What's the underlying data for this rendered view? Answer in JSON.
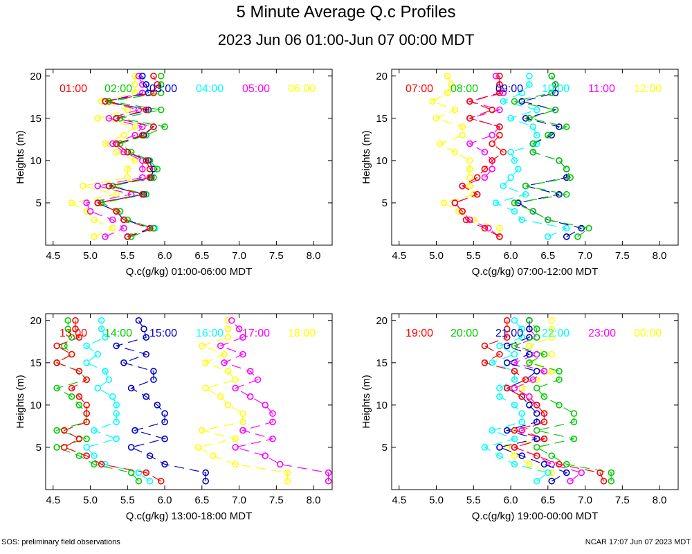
{
  "title": "5 Minute Average Q.c Profiles",
  "subtitle": "2023 Jun 06 01:00-Jun 07 00:00 MDT",
  "footer_left": "SOS: preliminary field observations",
  "footer_right": "NCAR 17:07 Jun 07 2023 MDT",
  "colors": [
    "#ff0000",
    "#00cc00",
    "#0000cc",
    "#00ffff",
    "#ff00ff",
    "#ffff00"
  ],
  "chart_data": [
    {
      "type": "line",
      "xlabel": "Q.c(g/kg) 01:00-06:00 MDT",
      "ylabel": "Heights (m)",
      "xlim": [
        4.4,
        8.25
      ],
      "ylim": [
        0,
        20.8
      ],
      "xticks": [
        "4.5",
        "5.0",
        "5.5",
        "6.0",
        "6.5",
        "7.0",
        "7.5",
        "8.0"
      ],
      "yticks": [
        "5",
        "10",
        "15",
        "20"
      ],
      "heights": [
        1,
        2,
        3,
        4,
        5,
        6,
        7,
        8,
        9,
        10,
        11,
        12,
        13,
        14,
        15,
        16,
        17,
        18,
        19,
        20
      ],
      "series": [
        {
          "name": "01:00",
          "color": "#ff0000",
          "values": [
            5.5,
            5.8,
            5.45,
            5.35,
            5.1,
            5.7,
            5.25,
            5.8,
            5.8,
            5.75,
            5.5,
            5.35,
            5.7,
            5.85,
            5.35,
            5.75,
            5.2,
            5.85,
            5.9,
            5.85
          ]
        },
        {
          "name": "02:00",
          "color": "#00cc00",
          "values": [
            5.55,
            5.85,
            5.5,
            5.4,
            5.15,
            5.75,
            5.3,
            5.85,
            5.9,
            5.8,
            5.55,
            5.4,
            5.75,
            6.0,
            5.4,
            5.95,
            5.25,
            5.95,
            5.95,
            5.95
          ]
        },
        {
          "name": "03:00",
          "color": "#0000cc",
          "values": [
            5.5,
            5.85,
            5.45,
            5.35,
            5.1,
            5.72,
            5.25,
            5.82,
            5.85,
            5.78,
            5.5,
            5.35,
            5.72,
            5.85,
            5.35,
            5.78,
            5.2,
            5.78,
            5.75,
            5.7
          ]
        },
        {
          "name": "04:00",
          "color": "#00ffff",
          "values": [
            5.5,
            5.87,
            5.45,
            5.35,
            5.1,
            5.72,
            5.25,
            5.8,
            5.85,
            5.78,
            5.5,
            5.35,
            5.72,
            5.85,
            5.35,
            5.78,
            5.2,
            5.78,
            5.75,
            5.7
          ]
        },
        {
          "name": "05:00",
          "color": "#ff00ff",
          "values": [
            5.2,
            5.45,
            5.3,
            5.0,
            4.95,
            5.55,
            5.1,
            5.7,
            5.7,
            5.7,
            5.45,
            5.3,
            5.6,
            5.7,
            5.25,
            5.65,
            5.2,
            5.7,
            5.7,
            5.65
          ]
        },
        {
          "name": "06:00",
          "color": "#ffff00",
          "values": [
            5.05,
            5.3,
            5.05,
            4.95,
            4.75,
            5.35,
            4.9,
            5.5,
            5.5,
            5.6,
            5.35,
            5.2,
            5.45,
            5.6,
            5.1,
            5.5,
            5.15,
            5.6,
            5.6,
            5.6
          ]
        }
      ]
    },
    {
      "type": "line",
      "xlabel": "Q.c(g/kg) 07:00-12:00 MDT",
      "ylabel": "Heights (m)",
      "xlim": [
        4.4,
        8.25
      ],
      "ylim": [
        0,
        20.8
      ],
      "xticks": [
        "4.5",
        "5.0",
        "5.5",
        "6.0",
        "6.5",
        "7.0",
        "7.5",
        "8.0"
      ],
      "yticks": [
        "5",
        "10",
        "15",
        "20"
      ],
      "heights": [
        1,
        2,
        3,
        4,
        5,
        6,
        7,
        8,
        9,
        10,
        11,
        12,
        13,
        14,
        15,
        16,
        17,
        18,
        19,
        20
      ],
      "series": [
        {
          "name": "07:00",
          "color": "#ff0000",
          "values": [
            5.85,
            5.65,
            5.4,
            5.35,
            5.25,
            5.55,
            5.35,
            5.55,
            5.65,
            5.75,
            5.9,
            5.75,
            5.85,
            5.85,
            5.45,
            5.75,
            5.45,
            5.85,
            5.85,
            5.85
          ]
        },
        {
          "name": "08:00",
          "color": "#00cc00",
          "values": [
            6.9,
            7.05,
            6.5,
            6.3,
            6.05,
            6.75,
            6.2,
            6.8,
            6.75,
            6.65,
            6.3,
            6.3,
            6.5,
            6.75,
            6.25,
            6.6,
            6.05,
            6.55,
            6.6,
            6.55
          ]
        },
        {
          "name": "09:00",
          "color": "#0000cc",
          "values": [
            6.75,
            6.95,
            6.5,
            6.3,
            6.1,
            6.65,
            6.2,
            6.75,
            6.75,
            6.65,
            6.3,
            6.3,
            6.55,
            6.65,
            6.2,
            6.6,
            6.15,
            6.6,
            6.6,
            6.55
          ]
        },
        {
          "name": "10:00",
          "color": "#00ffff",
          "values": [
            6.5,
            6.75,
            6.15,
            6.05,
            5.8,
            6.2,
            5.9,
            6.0,
            6.1,
            6.05,
            6.0,
            6.35,
            6.35,
            6.3,
            6.0,
            6.35,
            5.9,
            6.15,
            6.25,
            6.25
          ]
        },
        {
          "name": "11:00",
          "color": "#ff00ff",
          "values": [
            5.85,
            5.7,
            5.45,
            5.35,
            5.25,
            5.55,
            5.35,
            5.65,
            5.75,
            5.75,
            5.65,
            5.45,
            5.75,
            5.85,
            5.45,
            5.85,
            5.45,
            5.9,
            5.85,
            5.8
          ]
        },
        {
          "name": "12:00",
          "color": "#ffff00",
          "values": [
            5.85,
            5.85,
            5.5,
            5.3,
            5.1,
            5.5,
            5.45,
            5.45,
            5.45,
            5.45,
            5.25,
            5.05,
            5.35,
            5.35,
            5.0,
            5.25,
            4.95,
            5.15,
            5.2,
            5.15
          ]
        }
      ]
    },
    {
      "type": "line",
      "xlabel": "Q.c(g/kg) 13:00-18:00 MDT",
      "ylabel": "Heights (m)",
      "xlim": [
        4.4,
        8.25
      ],
      "ylim": [
        0,
        20.8
      ],
      "xticks": [
        "4.5",
        "5.0",
        "5.5",
        "6.0",
        "6.5",
        "7.0",
        "7.5",
        "8.0"
      ],
      "yticks": [
        "5",
        "10",
        "15",
        "20"
      ],
      "heights": [
        1,
        2,
        3,
        4,
        5,
        6,
        7,
        8,
        9,
        10,
        11,
        12,
        13,
        14,
        15,
        16,
        17,
        18,
        19,
        20
      ],
      "series": [
        {
          "name": "13:00",
          "color": "#ff0000",
          "values": [
            5.95,
            5.75,
            5.15,
            4.95,
            4.65,
            4.85,
            4.65,
            4.95,
            4.95,
            4.95,
            4.85,
            4.75,
            4.95,
            4.85,
            4.55,
            4.75,
            4.55,
            4.85,
            4.8,
            4.8
          ]
        },
        {
          "name": "14:00",
          "color": "#00cc00",
          "values": [
            5.65,
            5.55,
            5.05,
            4.85,
            4.55,
            4.95,
            4.55,
            4.95,
            4.95,
            4.85,
            4.75,
            4.55,
            4.95,
            4.85,
            4.55,
            4.75,
            4.65,
            4.75,
            4.7,
            4.7
          ]
        },
        {
          "name": "15:00",
          "color": "#0000cc",
          "values": [
            6.55,
            6.55,
            6.0,
            5.8,
            5.55,
            6.0,
            5.6,
            6.0,
            6.0,
            5.9,
            5.75,
            5.55,
            5.85,
            5.85,
            5.45,
            5.75,
            5.35,
            5.75,
            5.72,
            5.65
          ]
        },
        {
          "name": "16:00",
          "color": "#00ffff",
          "values": [
            5.8,
            5.65,
            5.2,
            5.05,
            4.95,
            5.35,
            5.05,
            5.35,
            5.35,
            5.35,
            5.3,
            5.1,
            5.25,
            5.2,
            4.95,
            5.1,
            4.95,
            5.2,
            5.15,
            5.15
          ]
        },
        {
          "name": "17:00",
          "color": "#ff00ff",
          "values": [
            8.2,
            8.2,
            7.55,
            7.35,
            6.95,
            7.45,
            7.05,
            7.45,
            7.45,
            7.35,
            7.15,
            6.95,
            7.25,
            7.15,
            6.8,
            7.05,
            6.75,
            7.05,
            7.0,
            6.9
          ]
        },
        {
          "name": "18:00",
          "color": "#ffff00",
          "values": [
            7.65,
            7.65,
            6.95,
            6.65,
            6.45,
            6.95,
            6.5,
            7.05,
            7.05,
            6.85,
            6.75,
            6.55,
            6.95,
            6.85,
            6.55,
            6.8,
            6.5,
            6.85,
            6.85,
            6.85
          ]
        }
      ]
    },
    {
      "type": "line",
      "xlabel": "Q.c(g/kg) 19:00-00:00 MDT",
      "ylabel": "Heights (m)",
      "xlim": [
        4.4,
        8.25
      ],
      "ylim": [
        0,
        20.8
      ],
      "xticks": [
        "4.5",
        "5.0",
        "5.5",
        "6.0",
        "6.5",
        "7.0",
        "7.5",
        "8.0"
      ],
      "yticks": [
        "5",
        "10",
        "15",
        "20"
      ],
      "heights": [
        1,
        2,
        3,
        4,
        5,
        6,
        7,
        8,
        9,
        10,
        11,
        12,
        13,
        14,
        15,
        16,
        17,
        18,
        19,
        20
      ],
      "series": [
        {
          "name": "19:00",
          "color": "#ff0000",
          "values": [
            7.25,
            7.2,
            6.65,
            6.35,
            6.05,
            6.45,
            6.05,
            6.45,
            6.45,
            6.35,
            6.15,
            5.95,
            6.2,
            6.05,
            5.65,
            5.85,
            5.65,
            5.95,
            5.95,
            5.95
          ]
        },
        {
          "name": "20:00",
          "color": "#00cc00",
          "values": [
            7.35,
            7.35,
            6.75,
            6.55,
            6.35,
            6.85,
            6.35,
            6.85,
            6.85,
            6.65,
            6.45,
            6.35,
            6.65,
            6.65,
            6.25,
            6.45,
            6.05,
            6.35,
            6.35,
            6.25
          ]
        },
        {
          "name": "21:00",
          "color": "#0000cc",
          "values": [
            6.55,
            6.75,
            6.45,
            6.15,
            5.85,
            6.35,
            5.95,
            6.35,
            6.35,
            6.25,
            6.15,
            5.95,
            6.2,
            6.35,
            5.95,
            6.25,
            5.95,
            6.25,
            6.25,
            6.25
          ]
        },
        {
          "name": "22:00",
          "color": "#00ffff",
          "values": [
            6.35,
            6.5,
            6.05,
            5.85,
            5.65,
            6.05,
            5.75,
            6.15,
            6.15,
            6.05,
            5.85,
            5.85,
            6.05,
            6.05,
            5.75,
            6.05,
            5.85,
            6.15,
            6.15,
            6.05
          ]
        },
        {
          "name": "23:00",
          "color": "#ff00ff",
          "values": [
            6.8,
            6.95,
            6.55,
            6.35,
            6.05,
            6.45,
            6.15,
            6.45,
            6.45,
            6.35,
            6.25,
            6.05,
            6.3,
            6.45,
            6.05,
            6.35,
            6.05,
            6.35,
            6.25,
            6.25
          ]
        },
        {
          "name": "00:00",
          "color": "#ffff00",
          "values": [
            6.55,
            6.55,
            6.25,
            6.05,
            5.95,
            6.45,
            6.05,
            6.45,
            6.45,
            6.35,
            6.25,
            6.15,
            6.35,
            6.55,
            6.25,
            6.55,
            6.25,
            6.55,
            6.55,
            6.55
          ]
        }
      ]
    }
  ]
}
